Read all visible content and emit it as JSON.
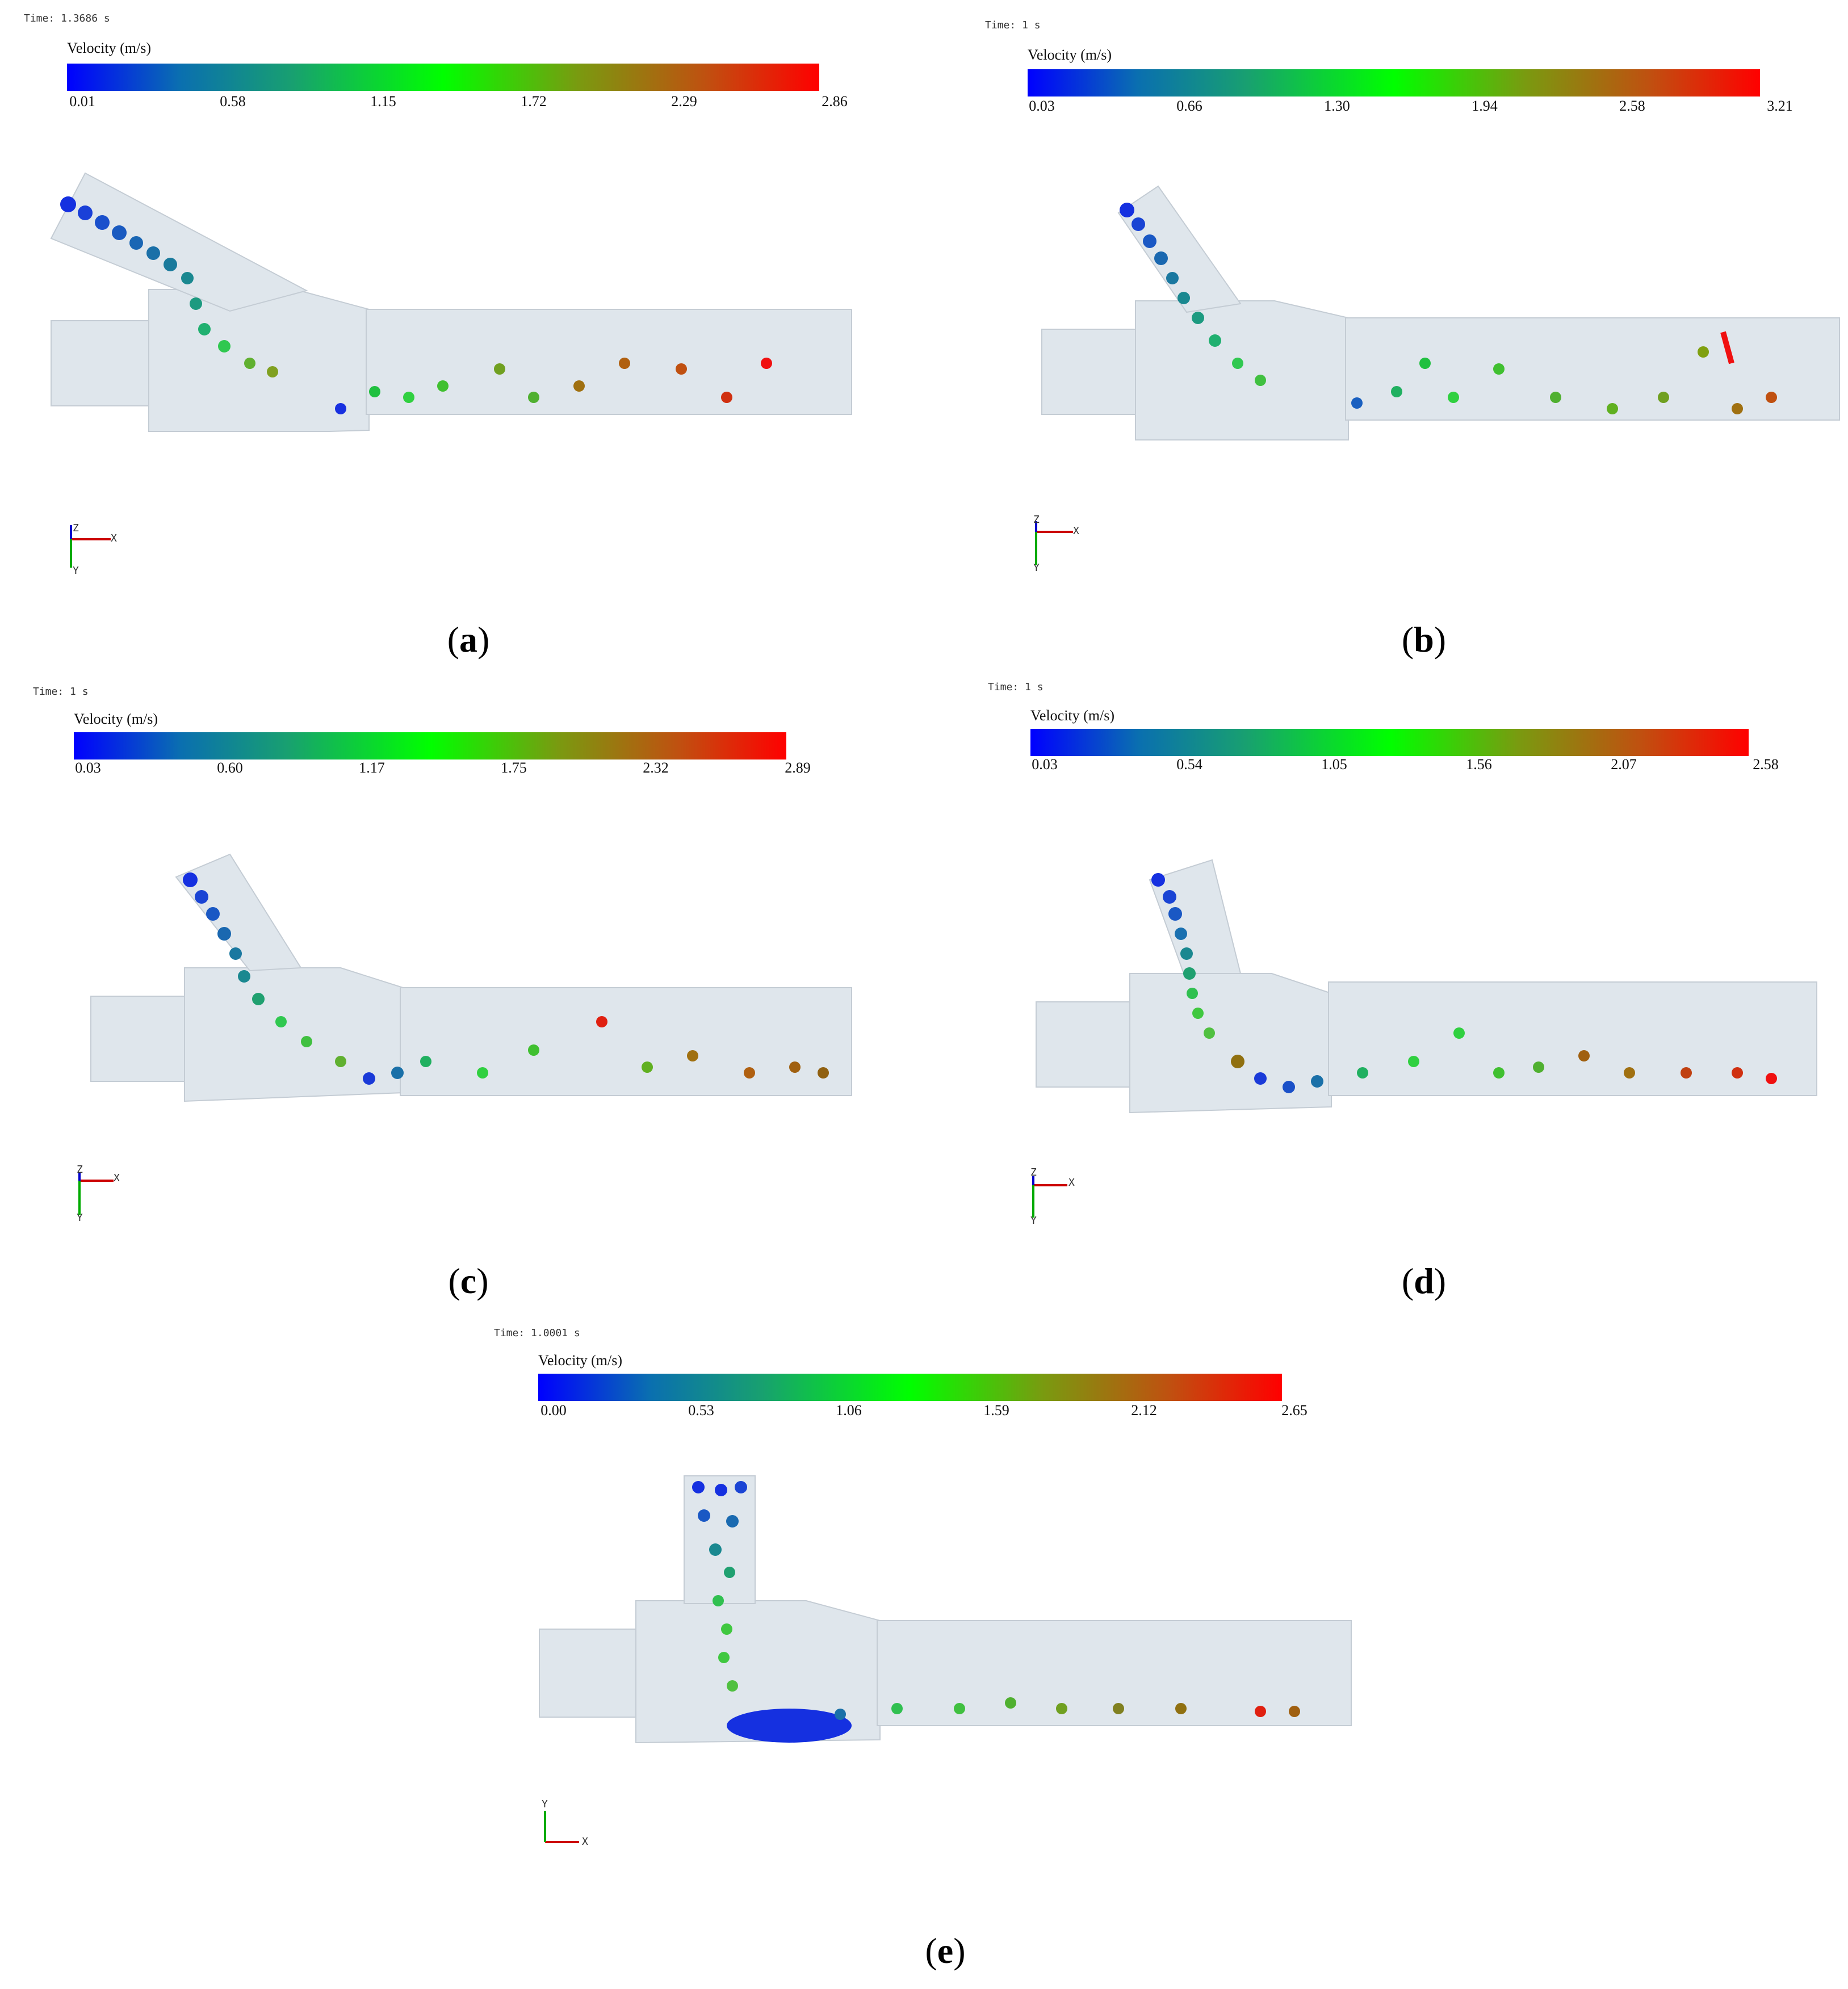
{
  "panels": [
    {
      "id": "a",
      "time": "Time: 1.3686 s",
      "legend_title": "Velocity (m/s)",
      "ticks": [
        "0.01",
        "0.58",
        "1.15",
        "1.72",
        "2.29",
        "2.86"
      ],
      "caption": "a",
      "axes": {
        "up": "Z",
        "right": "X",
        "down": "Y"
      }
    },
    {
      "id": "b",
      "time": "Time: 1 s",
      "legend_title": "Velocity (m/s)",
      "ticks": [
        "0.03",
        "0.66",
        "1.30",
        "1.94",
        "2.58",
        "3.21"
      ],
      "caption": "b",
      "axes": {
        "up": "Z",
        "right": "X",
        "down": "Y"
      }
    },
    {
      "id": "c",
      "time": "Time: 1 s",
      "legend_title": "Velocity (m/s)",
      "ticks": [
        "0.03",
        "0.60",
        "1.17",
        "1.75",
        "2.32",
        "2.89"
      ],
      "caption": "c",
      "axes": {
        "up": "Z",
        "right": "X",
        "down": "Y"
      }
    },
    {
      "id": "d",
      "time": "Time: 1 s",
      "legend_title": "Velocity (m/s)",
      "ticks": [
        "0.03",
        "0.54",
        "1.05",
        "1.56",
        "2.07",
        "2.58"
      ],
      "caption": "d",
      "axes": {
        "up": "Z",
        "right": "X",
        "down": "Y"
      }
    },
    {
      "id": "e",
      "time": "Time: 1.0001 s",
      "legend_title": "Velocity (m/s)",
      "ticks": [
        "0.00",
        "0.53",
        "1.06",
        "1.59",
        "2.12",
        "2.65"
      ],
      "caption": "e",
      "axes": {
        "up": "Y",
        "right": "X",
        "down": ""
      }
    }
  ],
  "colors": {
    "pipe": "#dfe6ec",
    "pipe_edge": "#c4ccd4",
    "low": "#0000ff",
    "mid": "#00ff00",
    "high": "#ff0000"
  }
}
